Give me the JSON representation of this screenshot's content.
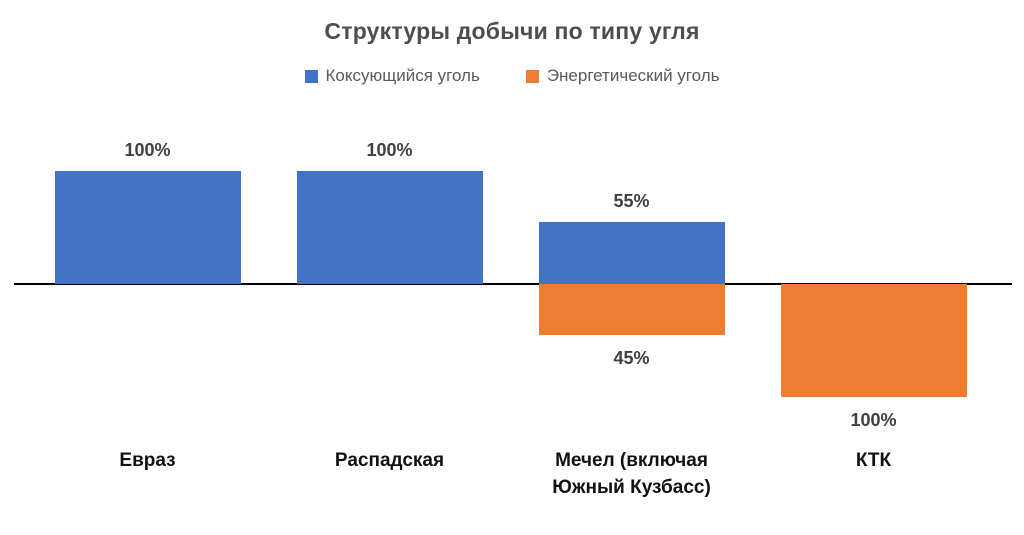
{
  "chart_data": {
    "type": "bar",
    "title": "Структуры добычи по типу угля",
    "categories": [
      "Евраз",
      "Распадская",
      "Мечел (включая Южный Кузбасс)",
      "КТК"
    ],
    "series": [
      {
        "name": "Коксующийся уголь",
        "color": "#4472C4",
        "orientation": "above-axis",
        "values": [
          100,
          100,
          55,
          0
        ],
        "labels": [
          "100%",
          "100%",
          "55%",
          null
        ]
      },
      {
        "name": "Энергетический уголь",
        "color": "#ED7D31",
        "orientation": "below-axis",
        "values": [
          0,
          0,
          45,
          100
        ],
        "labels": [
          null,
          null,
          "45%",
          "100%"
        ]
      }
    ],
    "unit": "%",
    "ylim": [
      -100,
      100
    ],
    "grid": false,
    "legend_position": "top",
    "axis_line_color": "#000000",
    "label_format": "percent"
  }
}
